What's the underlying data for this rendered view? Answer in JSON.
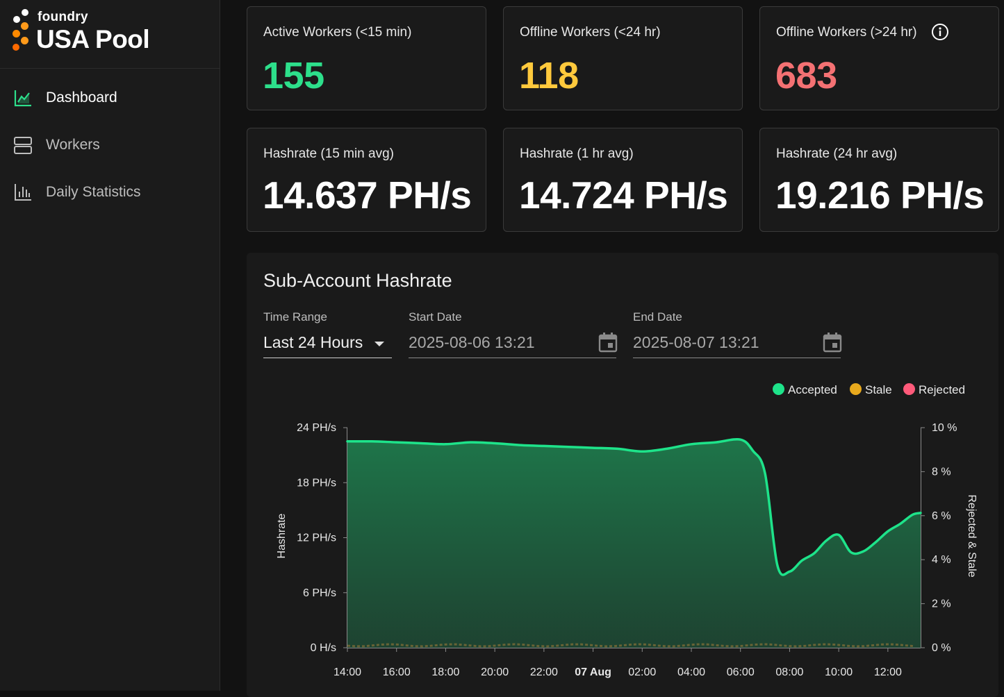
{
  "brand": {
    "small": "foundry",
    "big": "USA Pool"
  },
  "nav": [
    {
      "label": "Dashboard",
      "active": true
    },
    {
      "label": "Workers",
      "active": false
    },
    {
      "label": "Daily Statistics",
      "active": false
    }
  ],
  "cards": [
    {
      "title": "Active Workers (<15 min)",
      "value": "155",
      "color": "#2ddf8b"
    },
    {
      "title": "Offline Workers (<24 hr)",
      "value": "118",
      "color": "#ffc93c"
    },
    {
      "title": "Offline Workers (>24 hr)",
      "value": "683",
      "color": "#f47173"
    },
    {
      "title": "Hashrate (15 min avg)",
      "value": "14.637 PH/s"
    },
    {
      "title": "Hashrate (1 hr avg)",
      "value": "14.724 PH/s"
    },
    {
      "title": "Hashrate (24 hr avg)",
      "value": "19.216 PH/s"
    }
  ],
  "panel": {
    "title": "Sub-Account Hashrate",
    "time_range_label": "Time Range",
    "time_range_value": "Last 24 Hours",
    "start_label": "Start Date",
    "start_value": "2025-08-06 13:21",
    "end_label": "End Date",
    "end_value": "2025-08-07 13:21"
  },
  "colors": {
    "accepted": "#1ee38a",
    "stale": "#e8a91d",
    "rejected": "#ff5a7a"
  },
  "chart_data": {
    "type": "area",
    "series": [
      {
        "name": "Accepted",
        "unit": "PH/s",
        "x": [
          "14:00",
          "15:00",
          "16:00",
          "17:00",
          "18:00",
          "19:00",
          "20:00",
          "21:00",
          "22:00",
          "23:00",
          "00:00",
          "01:00",
          "02:00",
          "03:00",
          "04:00",
          "05:00",
          "06:00",
          "06:30",
          "07:00",
          "07:30",
          "08:00",
          "08:30",
          "09:00",
          "09:30",
          "10:00",
          "10:30",
          "11:00",
          "11:30",
          "12:00",
          "12:30",
          "13:00",
          "13:20"
        ],
        "values": [
          22.5,
          22.5,
          22.4,
          22.3,
          22.2,
          22.4,
          22.3,
          22.1,
          22.0,
          21.9,
          21.8,
          21.7,
          21.4,
          21.7,
          22.2,
          22.4,
          22.7,
          21.5,
          19.0,
          9.0,
          8.3,
          9.5,
          10.3,
          11.7,
          12.3,
          10.4,
          10.5,
          11.5,
          12.7,
          13.5,
          14.5,
          14.7
        ]
      },
      {
        "name": "Stale",
        "unit": "%",
        "approx_values": [
          0.1
        ]
      },
      {
        "name": "Rejected",
        "unit": "%",
        "approx_values": [
          0.05
        ]
      }
    ],
    "x_ticks": [
      "14:00",
      "16:00",
      "18:00",
      "20:00",
      "22:00",
      "07 Aug",
      "02:00",
      "04:00",
      "06:00",
      "08:00",
      "10:00",
      "12:00"
    ],
    "y_left": {
      "label": "Hashrate",
      "ticks": [
        "0 H/s",
        "6 PH/s",
        "12 PH/s",
        "18 PH/s",
        "24 PH/s"
      ],
      "range": [
        0,
        24
      ]
    },
    "y_right": {
      "label": "Rejected & Stale",
      "ticks": [
        "0 %",
        "2 %",
        "4 %",
        "6 %",
        "8 %",
        "10 %"
      ],
      "range": [
        0,
        10
      ]
    },
    "legend": [
      "Accepted",
      "Stale",
      "Rejected"
    ],
    "legend_position": "top-right"
  }
}
